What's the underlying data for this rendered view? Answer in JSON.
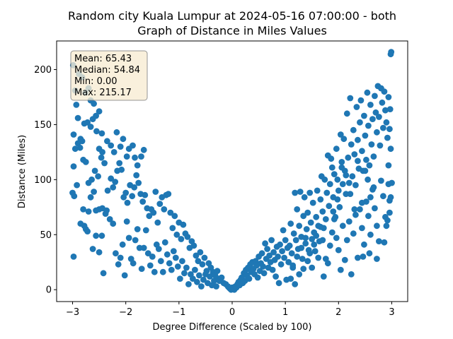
{
  "chart_data": {
    "type": "scatter",
    "title_lines": [
      "Random city Kuala Lumpur at 2024-05-16 07:00:00  - both",
      "Graph of Distance in Miles Values"
    ],
    "xlabel": "Degree Difference (Scaled by 100)",
    "ylabel": "Distance (Miles)",
    "xlim": [
      -3.3,
      3.3
    ],
    "ylim": [
      -10.8,
      226
    ],
    "x_ticks": [
      -3,
      -2,
      -1,
      0,
      1,
      2,
      3
    ],
    "y_ticks": [
      0,
      50,
      100,
      150,
      200
    ],
    "grid": false,
    "point_color": "#1f77b4",
    "stats_box": {
      "lines": [
        "Mean: 65.43",
        "Median: 54.84",
        "Min: 0.00",
        "Max: 215.17"
      ],
      "background": "#f8ecd3",
      "border": "#777777"
    },
    "points": [
      [
        -2.99,
        204
      ],
      [
        -2.95,
        181
      ],
      [
        -2.93,
        168
      ],
      [
        -2.88,
        196
      ],
      [
        -2.82,
        193
      ],
      [
        -2.76,
        179
      ],
      [
        -2.7,
        183
      ],
      [
        -2.66,
        172
      ],
      [
        -2.6,
        169
      ],
      [
        -2.56,
        158
      ],
      [
        -2.5,
        162
      ],
      [
        -2.45,
        142
      ],
      [
        -2.98,
        141
      ],
      [
        -2.95,
        128
      ],
      [
        -2.9,
        156
      ],
      [
        -2.85,
        137
      ],
      [
        -2.82,
        135
      ],
      [
        -2.78,
        151
      ],
      [
        -2.72,
        152
      ],
      [
        -2.66,
        148
      ],
      [
        -2.62,
        155
      ],
      [
        -2.55,
        144
      ],
      [
        -2.5,
        128
      ],
      [
        -2.44,
        125
      ],
      [
        -2.98,
        112
      ],
      [
        -2.9,
        133
      ],
      [
        -2.86,
        129
      ],
      [
        -2.8,
        118
      ],
      [
        -2.75,
        116
      ],
      [
        -2.7,
        97
      ],
      [
        -2.64,
        100
      ],
      [
        -2.58,
        108
      ],
      [
        -2.52,
        103
      ],
      [
        -2.46,
        120
      ],
      [
        -2.4,
        115
      ],
      [
        -2.35,
        135
      ],
      [
        -2.28,
        131
      ],
      [
        -2.22,
        125
      ],
      [
        -2.17,
        143
      ],
      [
        -2.1,
        130
      ],
      [
        -2.05,
        137
      ],
      [
        -1.98,
        121
      ],
      [
        -1.94,
        128
      ],
      [
        -1.87,
        131
      ],
      [
        -1.83,
        120
      ],
      [
        -1.78,
        113
      ],
      [
        -1.71,
        121
      ],
      [
        -1.66,
        127
      ],
      [
        -3.0,
        88
      ],
      [
        -2.97,
        85
      ],
      [
        -2.92,
        95
      ],
      [
        -2.85,
        60
      ],
      [
        -2.8,
        73
      ],
      [
        -2.75,
        55
      ],
      [
        -2.7,
        71
      ],
      [
        -2.66,
        84
      ],
      [
        -2.6,
        89
      ],
      [
        -2.56,
        72
      ],
      [
        -2.5,
        73
      ],
      [
        -2.44,
        74
      ],
      [
        -2.38,
        69
      ],
      [
        -2.34,
        90
      ],
      [
        -2.28,
        101
      ],
      [
        -2.24,
        93
      ],
      [
        -2.2,
        98
      ],
      [
        -2.16,
        108
      ],
      [
        -2.12,
        115
      ],
      [
        -2.08,
        109
      ],
      [
        -2.04,
        84
      ],
      [
        -2.0,
        88
      ],
      [
        -1.97,
        79
      ],
      [
        -1.92,
        95
      ],
      [
        -1.88,
        85
      ],
      [
        -1.84,
        93
      ],
      [
        -1.8,
        104
      ],
      [
        -1.76,
        97
      ],
      [
        -1.72,
        87
      ],
      [
        -1.68,
        80
      ],
      [
        -1.64,
        86
      ],
      [
        -1.6,
        74
      ],
      [
        -1.56,
        67
      ],
      [
        -1.52,
        73
      ],
      [
        -1.48,
        70
      ],
      [
        -1.44,
        89
      ],
      [
        -1.4,
        61
      ],
      [
        -1.36,
        78
      ],
      [
        -1.32,
        84
      ],
      [
        -1.28,
        73
      ],
      [
        -1.24,
        86
      ],
      [
        -1.2,
        87
      ],
      [
        -1.16,
        70
      ],
      [
        -1.12,
        56
      ],
      [
        -1.08,
        67
      ],
      [
        -1.04,
        50
      ],
      [
        -1.0,
        61
      ],
      [
        -0.96,
        46
      ],
      [
        -0.92,
        59
      ],
      [
        -0.88,
        51
      ],
      [
        -0.84,
        48
      ],
      [
        -0.8,
        38
      ],
      [
        -0.76,
        44
      ],
      [
        -0.72,
        40
      ],
      [
        -0.68,
        31
      ],
      [
        -0.64,
        26
      ],
      [
        -0.6,
        34
      ],
      [
        -0.56,
        23
      ],
      [
        -0.52,
        29
      ],
      [
        -0.48,
        17
      ],
      [
        -2.98,
        30
      ],
      [
        -2.78,
        58
      ],
      [
        -2.72,
        53
      ],
      [
        -2.62,
        37
      ],
      [
        -2.56,
        49
      ],
      [
        -2.5,
        34
      ],
      [
        -2.45,
        49
      ],
      [
        -2.42,
        15
      ],
      [
        -2.36,
        72
      ],
      [
        -2.3,
        64
      ],
      [
        -2.24,
        60
      ],
      [
        -2.19,
        33
      ],
      [
        -2.14,
        23
      ],
      [
        -2.1,
        29
      ],
      [
        -2.06,
        41
      ],
      [
        -2.02,
        13
      ],
      [
        -1.98,
        62
      ],
      [
        -1.94,
        47
      ],
      [
        -1.9,
        28
      ],
      [
        -1.86,
        24
      ],
      [
        -1.82,
        45
      ],
      [
        -1.78,
        55
      ],
      [
        -1.74,
        38
      ],
      [
        -1.7,
        19
      ],
      [
        -1.66,
        38
      ],
      [
        -1.62,
        54
      ],
      [
        -1.58,
        33
      ],
      [
        -1.54,
        22
      ],
      [
        -1.5,
        30
      ],
      [
        -1.46,
        16
      ],
      [
        -1.42,
        41
      ],
      [
        -1.38,
        37
      ],
      [
        -1.34,
        26
      ],
      [
        -1.3,
        16
      ],
      [
        -1.26,
        43
      ],
      [
        -1.22,
        32
      ],
      [
        -1.18,
        24
      ],
      [
        -1.14,
        18
      ],
      [
        -1.1,
        35
      ],
      [
        -1.06,
        29
      ],
      [
        -1.02,
        21
      ],
      [
        -0.98,
        10
      ],
      [
        -0.94,
        26
      ],
      [
        -0.9,
        15
      ],
      [
        -0.86,
        20
      ],
      [
        -0.82,
        5
      ],
      [
        -0.78,
        14
      ],
      [
        -0.74,
        10
      ],
      [
        -0.7,
        18
      ],
      [
        -0.66,
        7
      ],
      [
        -0.62,
        13
      ],
      [
        -0.58,
        3
      ],
      [
        -0.54,
        9
      ],
      [
        -0.5,
        14
      ],
      [
        -0.46,
        6
      ],
      [
        -0.42,
        12
      ],
      [
        -0.38,
        4
      ],
      [
        -0.34,
        8
      ],
      [
        -0.3,
        3
      ],
      [
        -0.26,
        10
      ],
      [
        -0.44,
        24
      ],
      [
        -0.4,
        20
      ],
      [
        -0.36,
        16
      ],
      [
        -0.32,
        13
      ],
      [
        -0.28,
        17
      ],
      [
        -0.24,
        8
      ],
      [
        -0.2,
        11
      ],
      [
        -0.16,
        6
      ],
      [
        -0.12,
        5
      ],
      [
        -0.08,
        3
      ],
      [
        -0.06,
        2
      ],
      [
        -0.04,
        1
      ],
      [
        -0.02,
        0
      ],
      [
        0.0,
        2
      ],
      [
        0.02,
        1
      ],
      [
        0.04,
        0
      ],
      [
        0.06,
        3
      ],
      [
        0.08,
        2
      ],
      [
        0.1,
        5
      ],
      [
        0.12,
        7
      ],
      [
        0.14,
        4
      ],
      [
        0.16,
        9
      ],
      [
        0.18,
        11
      ],
      [
        0.2,
        6
      ],
      [
        0.22,
        15
      ],
      [
        0.24,
        8
      ],
      [
        0.26,
        18
      ],
      [
        0.28,
        13
      ],
      [
        0.3,
        20
      ],
      [
        0.32,
        10
      ],
      [
        0.34,
        23
      ],
      [
        0.36,
        16
      ],
      [
        0.38,
        25
      ],
      [
        0.4,
        19
      ],
      [
        0.42,
        14
      ],
      [
        0.44,
        26
      ],
      [
        0.46,
        22
      ],
      [
        0.48,
        11
      ],
      [
        0.5,
        30
      ],
      [
        0.52,
        17
      ],
      [
        0.54,
        24
      ],
      [
        0.56,
        33
      ],
      [
        0.58,
        21
      ],
      [
        0.6,
        15
      ],
      [
        0.62,
        42
      ],
      [
        0.64,
        28
      ],
      [
        0.66,
        37
      ],
      [
        0.68,
        20
      ],
      [
        0.7,
        31
      ],
      [
        0.72,
        25
      ],
      [
        0.74,
        45
      ],
      [
        0.76,
        18
      ],
      [
        0.78,
        34
      ],
      [
        0.8,
        27
      ],
      [
        0.82,
        12
      ],
      [
        0.84,
        39
      ],
      [
        0.86,
        30
      ],
      [
        0.88,
        6
      ],
      [
        0.9,
        41
      ],
      [
        0.92,
        23
      ],
      [
        0.94,
        35
      ],
      [
        0.96,
        54
      ],
      [
        0.98,
        29
      ],
      [
        1.0,
        45
      ],
      [
        1.02,
        9
      ],
      [
        1.04,
        38
      ],
      [
        1.06,
        25
      ],
      [
        1.08,
        40
      ],
      [
        1.1,
        60
      ],
      [
        1.12,
        33
      ],
      [
        1.14,
        20
      ],
      [
        1.16,
        51
      ],
      [
        1.18,
        88
      ],
      [
        1.2,
        45
      ],
      [
        1.22,
        73
      ],
      [
        1.24,
        37
      ],
      [
        1.26,
        58
      ],
      [
        1.28,
        89
      ],
      [
        1.3,
        48
      ],
      [
        1.32,
        28
      ],
      [
        1.34,
        67
      ],
      [
        1.36,
        84
      ],
      [
        1.38,
        42
      ],
      [
        1.4,
        55
      ],
      [
        1.42,
        70
      ],
      [
        1.44,
        36
      ],
      [
        1.46,
        88
      ],
      [
        1.48,
        61
      ],
      [
        1.5,
        46
      ],
      [
        1.52,
        79
      ],
      [
        1.54,
        52
      ],
      [
        1.56,
        35
      ],
      [
        1.58,
        66
      ],
      [
        1.6,
        90
      ],
      [
        1.62,
        58
      ],
      [
        1.64,
        44
      ],
      [
        1.66,
        82
      ],
      [
        1.68,
        103
      ],
      [
        1.7,
        71
      ],
      [
        1.72,
        56
      ],
      [
        1.74,
        100
      ],
      [
        1.76,
        64
      ],
      [
        1.78,
        88
      ],
      [
        1.8,
        122
      ],
      [
        1.82,
        76
      ],
      [
        1.84,
        96
      ],
      [
        1.86,
        119
      ],
      [
        1.88,
        111
      ],
      [
        1.9,
        84
      ],
      [
        1.92,
        105
      ],
      [
        1.94,
        66
      ],
      [
        1.96,
        128
      ],
      [
        1.98,
        100
      ],
      [
        2.0,
        90
      ],
      [
        2.02,
        75
      ],
      [
        2.04,
        141
      ],
      [
        2.06,
        116
      ],
      [
        2.08,
        96
      ],
      [
        2.1,
        137
      ],
      [
        2.12,
        108
      ],
      [
        2.14,
        87
      ],
      [
        2.16,
        160
      ],
      [
        2.18,
        120
      ],
      [
        2.2,
        97
      ],
      [
        2.22,
        174
      ],
      [
        2.24,
        132
      ],
      [
        2.26,
        103
      ],
      [
        2.28,
        145
      ],
      [
        2.3,
        123
      ],
      [
        2.32,
        95
      ],
      [
        2.34,
        166
      ],
      [
        2.36,
        136
      ],
      [
        2.38,
        110
      ],
      [
        2.4,
        152
      ],
      [
        2.42,
        172
      ],
      [
        2.44,
        126
      ],
      [
        2.46,
        108
      ],
      [
        2.48,
        158
      ],
      [
        2.5,
        140
      ],
      [
        2.52,
        118
      ],
      [
        2.54,
        179
      ],
      [
        2.56,
        149
      ],
      [
        2.58,
        113
      ],
      [
        2.6,
        168
      ],
      [
        2.62,
        132
      ],
      [
        2.64,
        155
      ],
      [
        2.66,
        121
      ],
      [
        2.68,
        176
      ],
      [
        2.7,
        161
      ],
      [
        2.72,
        143
      ],
      [
        2.74,
        185
      ],
      [
        2.76,
        157
      ],
      [
        2.78,
        131
      ],
      [
        2.8,
        183
      ],
      [
        2.82,
        170
      ],
      [
        2.84,
        147
      ],
      [
        2.86,
        180
      ],
      [
        2.88,
        163
      ],
      [
        2.9,
        152
      ],
      [
        2.92,
        138
      ],
      [
        2.94,
        175
      ],
      [
        2.96,
        146
      ],
      [
        2.97,
        164
      ],
      [
        2.98,
        214
      ],
      [
        2.99,
        216
      ],
      [
        1.72,
        12
      ],
      [
        1.76,
        28
      ],
      [
        1.8,
        24
      ],
      [
        1.84,
        40
      ],
      [
        1.88,
        52
      ],
      [
        1.92,
        64
      ],
      [
        1.96,
        47
      ],
      [
        2.0,
        36
      ],
      [
        2.04,
        18
      ],
      [
        2.08,
        58
      ],
      [
        2.12,
        27
      ],
      [
        2.16,
        45
      ],
      [
        2.2,
        62
      ],
      [
        2.24,
        14
      ],
      [
        2.28,
        51
      ],
      [
        2.32,
        68
      ],
      [
        2.36,
        29
      ],
      [
        2.4,
        73
      ],
      [
        2.44,
        56
      ],
      [
        2.48,
        41
      ],
      [
        2.52,
        80
      ],
      [
        2.56,
        67
      ],
      [
        2.6,
        50
      ],
      [
        2.64,
        91
      ],
      [
        2.68,
        74
      ],
      [
        2.72,
        58
      ],
      [
        2.76,
        44
      ],
      [
        2.8,
        99
      ],
      [
        2.84,
        85
      ],
      [
        2.88,
        66
      ],
      [
        2.9,
        58
      ],
      [
        2.94,
        96
      ],
      [
        2.96,
        81
      ],
      [
        2.98,
        84
      ],
      [
        3.0,
        97
      ],
      [
        1.1,
        10
      ],
      [
        1.14,
        22
      ],
      [
        1.18,
        5
      ],
      [
        1.22,
        30
      ],
      [
        1.26,
        14
      ],
      [
        1.3,
        38
      ],
      [
        1.34,
        19
      ],
      [
        1.38,
        47
      ],
      [
        1.42,
        26
      ],
      [
        1.46,
        33
      ],
      [
        1.5,
        20
      ],
      [
        1.54,
        41
      ],
      [
        1.58,
        49
      ],
      [
        1.62,
        29
      ],
      [
        1.66,
        57
      ],
      [
        1.7,
        45
      ],
      [
        2.46,
        30
      ],
      [
        2.58,
        33
      ],
      [
        2.72,
        28
      ],
      [
        2.86,
        43
      ],
      [
        2.92,
        63
      ],
      [
        2.96,
        70
      ],
      [
        2.94,
        113
      ],
      [
        2.98,
        128
      ],
      [
        2.55,
        100
      ],
      [
        2.6,
        84
      ],
      [
        2.66,
        93
      ],
      [
        2.5,
        108
      ],
      [
        2.44,
        79
      ],
      [
        2.36,
        117
      ],
      [
        2.3,
        73
      ],
      [
        2.22,
        87
      ],
      [
        2.14,
        104
      ],
      [
        2.06,
        111
      ],
      [
        1.98,
        82
      ],
      [
        1.9,
        71
      ]
    ]
  }
}
